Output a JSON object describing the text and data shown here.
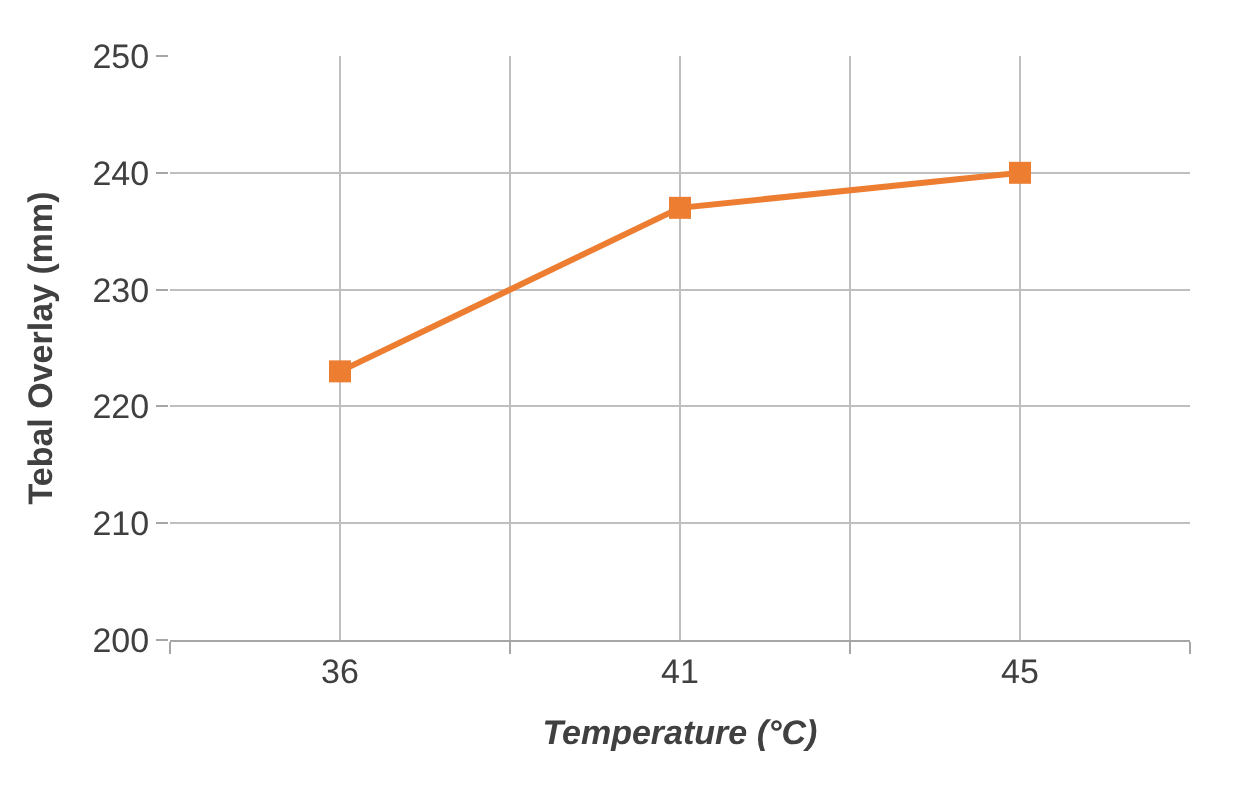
{
  "chart_data": {
    "type": "line",
    "xlabel": "Temperature (°C)",
    "ylabel": "Tebal Overlay (mm)",
    "categories": [
      "36",
      "41",
      "45"
    ],
    "series": [
      {
        "color": "#ed7d31",
        "values": [
          223,
          237,
          240
        ]
      }
    ],
    "ylim": [
      200,
      250
    ],
    "yticks": [
      200,
      210,
      220,
      230,
      240,
      250
    ],
    "grid": true,
    "legend": false,
    "marker": "square",
    "line_style": "solid"
  }
}
